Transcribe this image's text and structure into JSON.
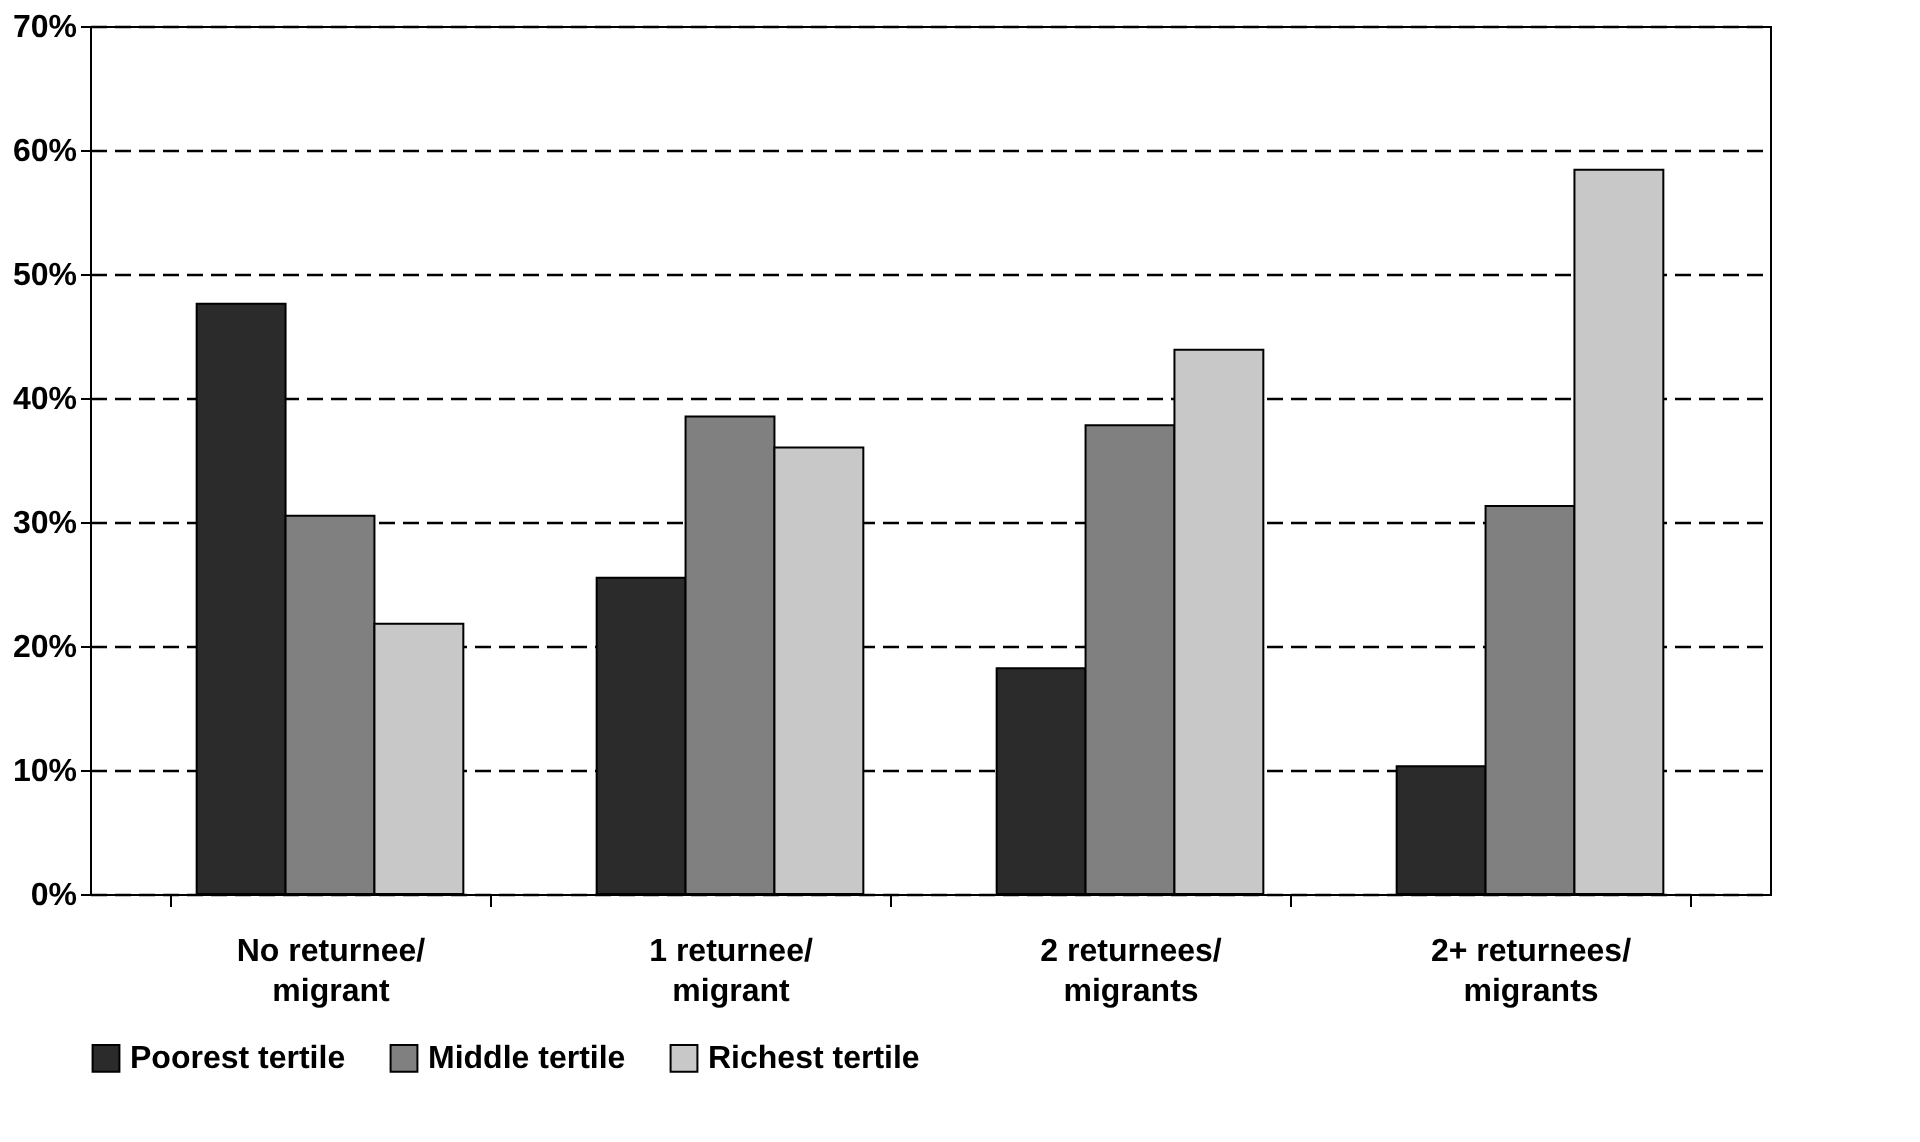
{
  "chart_data": {
    "type": "bar",
    "categories": [
      "No returnee/\nmigrant",
      "1 returnee/\nmigrant",
      "2 returnees/\nmigrants",
      "2+ returnees/\nmigrants"
    ],
    "series": [
      {
        "name": "Poorest tertile",
        "color": "#2b2b2b",
        "values": [
          47.6,
          25.5,
          18.2,
          10.3
        ]
      },
      {
        "name": "Middle tertile",
        "color": "#808080",
        "values": [
          30.5,
          38.5,
          37.8,
          31.3
        ]
      },
      {
        "name": "Richest tertile",
        "color": "#c8c8c8",
        "values": [
          21.8,
          36.0,
          43.9,
          58.4
        ]
      }
    ],
    "ylim": [
      0,
      70
    ],
    "yticks": [
      {
        "value": 0,
        "label": "0%"
      },
      {
        "value": 10,
        "label": "10%"
      },
      {
        "value": 20,
        "label": "20%"
      },
      {
        "value": 30,
        "label": "30%"
      },
      {
        "value": 40,
        "label": "40%"
      },
      {
        "value": 50,
        "label": "50%"
      },
      {
        "value": 60,
        "label": "60%"
      },
      {
        "value": 70,
        "label": "70%"
      }
    ],
    "grid": "y",
    "legend": "bottom"
  }
}
